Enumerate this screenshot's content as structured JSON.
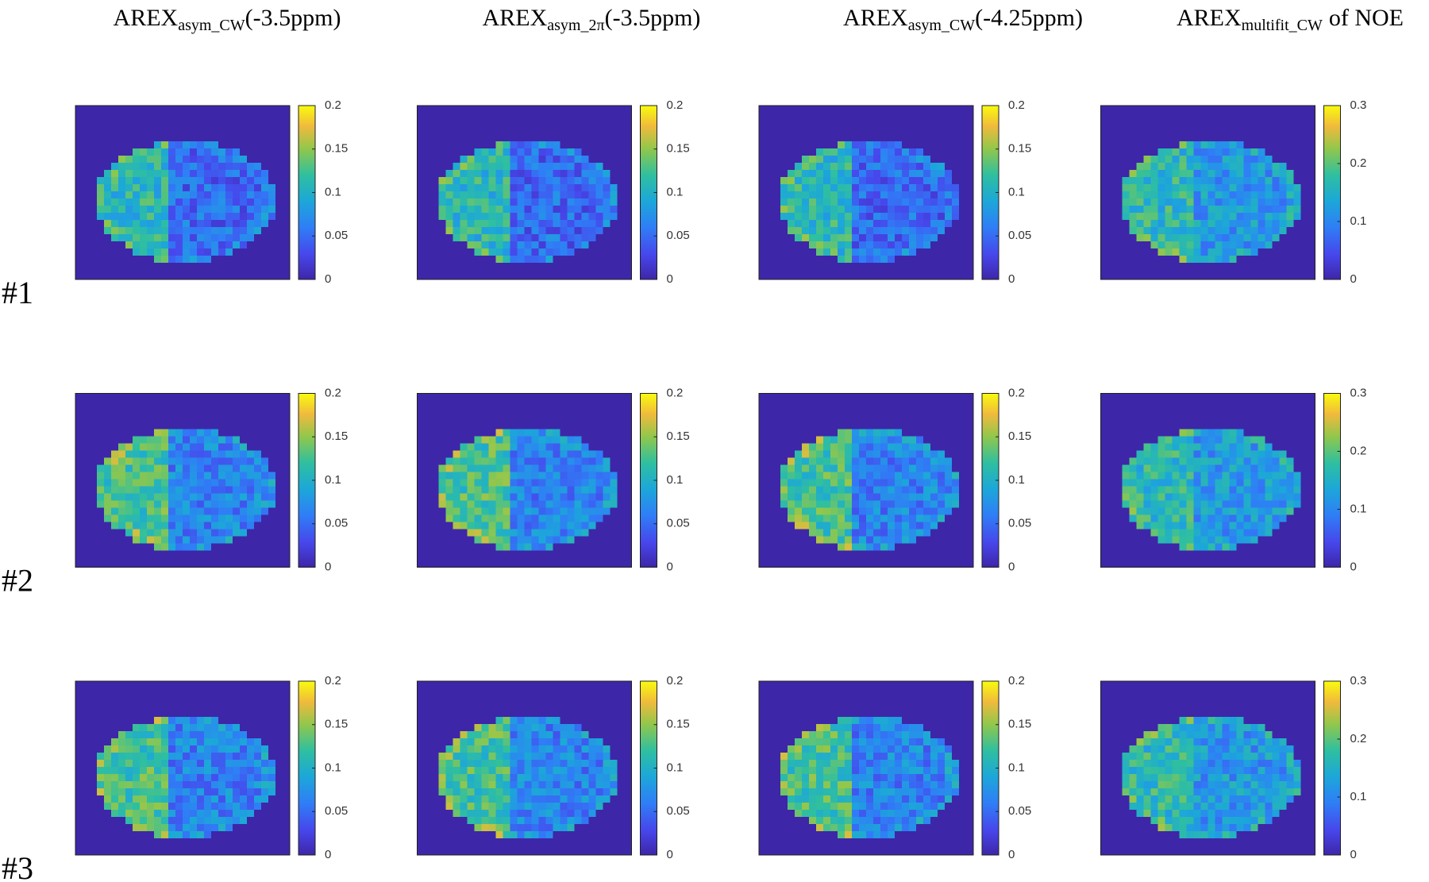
{
  "columns": [
    {
      "title": "AREX",
      "subscript": "asym_CW",
      "suffix": "(-3.5ppm)",
      "clim": [
        0,
        0.2
      ],
      "ticks": [
        0,
        0.05,
        0.1,
        0.15,
        0.2
      ]
    },
    {
      "title": "AREX",
      "subscript": "asym_2π",
      "suffix": "(-3.5ppm)",
      "clim": [
        0,
        0.2
      ],
      "ticks": [
        0,
        0.05,
        0.1,
        0.15,
        0.2
      ]
    },
    {
      "title": "AREX",
      "subscript": "asym_CW",
      "suffix": "(-4.25ppm)",
      "clim": [
        0,
        0.2
      ],
      "ticks": [
        0,
        0.05,
        0.1,
        0.15,
        0.2
      ]
    },
    {
      "title": "AREX",
      "subscript": "multifit_CW",
      "suffix": "of NOE",
      "clim": [
        0,
        0.3
      ],
      "ticks": [
        0,
        0.1,
        0.2,
        0.3
      ]
    }
  ],
  "rows": [
    "#1",
    "#2",
    "#3"
  ]
}
